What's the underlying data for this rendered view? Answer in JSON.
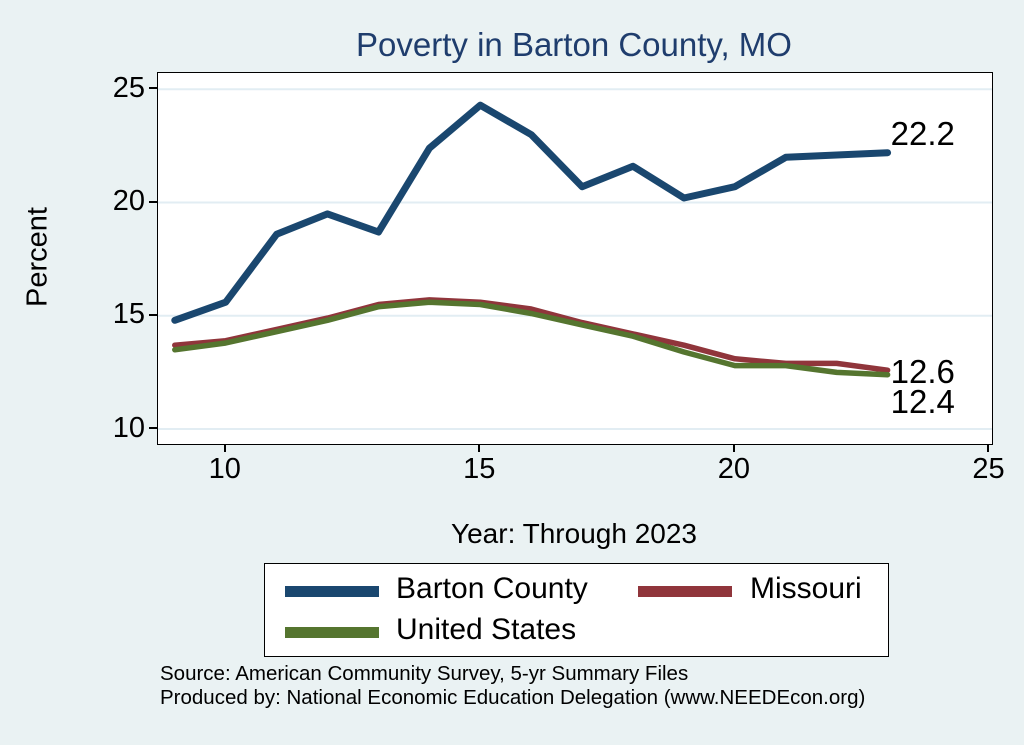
{
  "figure": {
    "title": "Poverty in Barton County, MO",
    "x_axis_title": "Year: Through 2023",
    "y_axis_title": "Percent",
    "source_line1": "Source: American Community Survey, 5-yr Summary Files",
    "source_line2": "Produced by: National Economic Education Delegation (www.NEEDEcon.org)"
  },
  "colors": {
    "background": "#eaf2f3",
    "plot_background": "#ffffff",
    "gridline": "#e2edf3",
    "axis": "#000000",
    "title": "#1f3d6d",
    "barton_county": "#1a476f",
    "missouri": "#90353b",
    "united_states": "#55752f"
  },
  "legend": {
    "items": [
      {
        "label": "Barton County",
        "color": "#1a476f"
      },
      {
        "label": "Missouri",
        "color": "#90353b"
      },
      {
        "label": "United States",
        "color": "#55752f"
      }
    ]
  },
  "chart_data": {
    "type": "line",
    "title": "Poverty in Barton County, MO",
    "xlabel": "Year: Through 2023",
    "ylabel": "Percent",
    "grid": "horizontal",
    "legend_position": "bottom",
    "x": [
      2009,
      2010,
      2011,
      2012,
      2013,
      2014,
      2015,
      2016,
      2017,
      2018,
      2019,
      2020,
      2021,
      2022,
      2023
    ],
    "x_ticks": [
      2010,
      2015,
      2020,
      2025
    ],
    "x_tick_labels": [
      "10",
      "15",
      "20",
      "25"
    ],
    "y_ticks": [
      10,
      15,
      20,
      25
    ],
    "xlim": [
      2008.67,
      2025.05
    ],
    "ylim": [
      9.34,
      25.72
    ],
    "series": [
      {
        "name": "Barton County",
        "color": "#1a476f",
        "width": 7,
        "values": [
          14.8,
          15.6,
          18.6,
          19.5,
          18.7,
          22.4,
          24.3,
          23.0,
          20.7,
          21.6,
          20.2,
          20.7,
          22.0,
          22.1,
          22.2
        ],
        "end_label": {
          "text": "22.2",
          "dy": -19
        }
      },
      {
        "name": "Missouri",
        "color": "#90353b",
        "width": 5.5,
        "values": [
          13.7,
          13.9,
          14.4,
          14.9,
          15.5,
          15.7,
          15.6,
          15.3,
          14.7,
          14.2,
          13.7,
          13.1,
          12.9,
          12.9,
          12.6
        ],
        "end_label": {
          "text": "12.6",
          "dy": 2
        }
      },
      {
        "name": "United States",
        "color": "#55752f",
        "width": 5.5,
        "values": [
          13.5,
          13.8,
          14.3,
          14.8,
          15.4,
          15.6,
          15.5,
          15.1,
          14.6,
          14.1,
          13.4,
          12.8,
          12.8,
          12.5,
          12.4
        ],
        "end_label": {
          "text": "12.4",
          "dy": 27
        }
      }
    ]
  }
}
